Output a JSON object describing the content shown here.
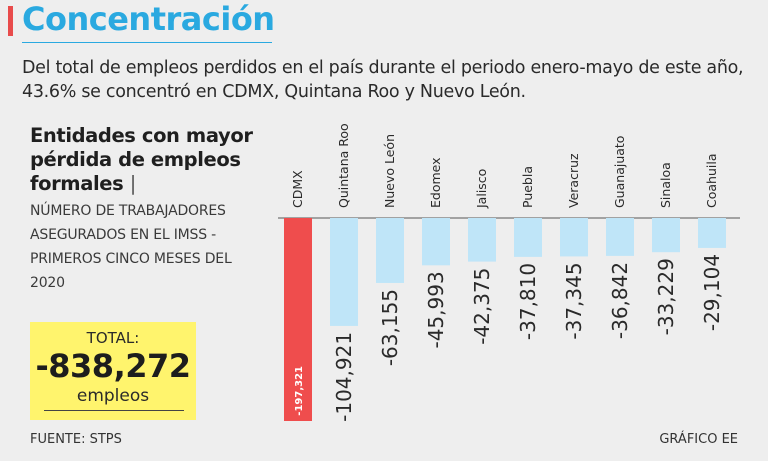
{
  "header": {
    "title": "Concentración",
    "subtitle": "Del total de empleos perdidos en el país durante el periodo enero-mayo de este año, 43.6% se concentró en CDMX, Quintana Roo y Nuevo León."
  },
  "legend": {
    "heading": "Entidades con mayor pérdida de empleos formales",
    "heading_mark": "|",
    "description": "NÚMERO DE TRABAJADORES ASEGURADOS EN EL IMSS - PRIMEROS CINCO MESES DEL 2020"
  },
  "total": {
    "label": "TOTAL:",
    "value": "-838,272",
    "unit": "empleos"
  },
  "footer": {
    "source": "FUENTE: STPS",
    "credit": "GRÁFICO EE"
  },
  "colors": {
    "title": "#2aa9e0",
    "highlight_bar": "#ef4d4d",
    "bar": "#bfe5f8",
    "total_bg": "#fff46d"
  },
  "chart_data": {
    "type": "bar",
    "orientation": "vertical-downward",
    "categories": [
      "CDMX",
      "Quintana Roo",
      "Nuevo León",
      "Edomex",
      "Jalisco",
      "Puebla",
      "Veracruz",
      "Guanajuato",
      "Sinaloa",
      "Coahuila"
    ],
    "values": [
      -197321,
      -104921,
      -63155,
      -45993,
      -42375,
      -37810,
      -37345,
      -36842,
      -33229,
      -29104
    ],
    "labels": [
      "-197,321",
      "-104,921",
      "-63,155",
      "-45,993",
      "-42,375",
      "-37,810",
      "-37,345",
      "-36,842",
      "-33,229",
      "-29,104"
    ],
    "highlight_index": 0,
    "ylim": [
      -197321,
      0
    ]
  }
}
